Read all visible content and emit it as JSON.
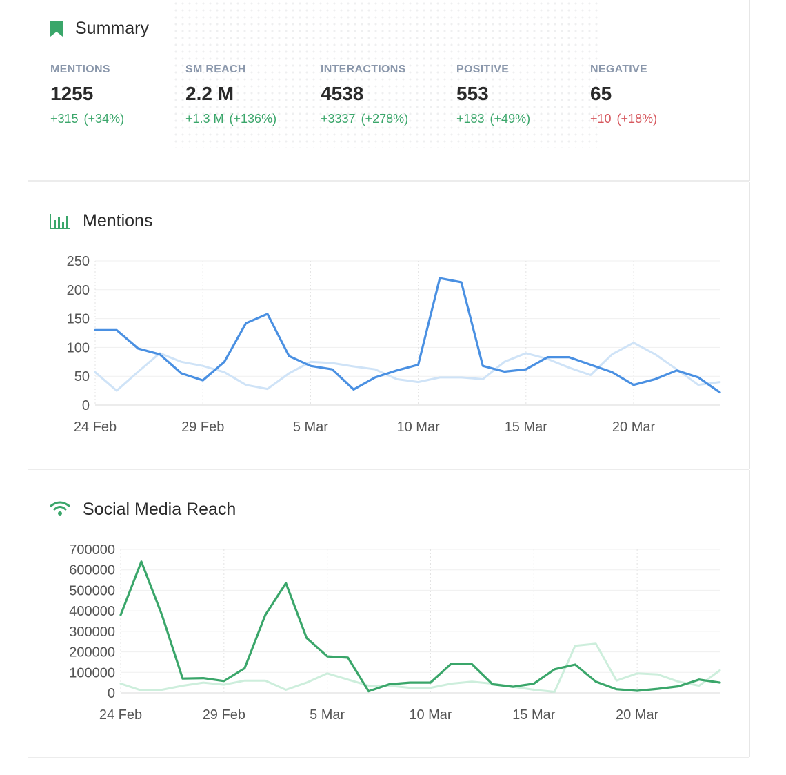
{
  "summary": {
    "title": "Summary",
    "metrics": [
      {
        "label": "MENTIONS",
        "value": "1255",
        "delta": "+315",
        "pct": "(+34%)",
        "trend": "pos"
      },
      {
        "label": "SM REACH",
        "value": "2.2 M",
        "delta": "+1.3 M",
        "pct": "(+136%)",
        "trend": "pos"
      },
      {
        "label": "INTERACTIONS",
        "value": "4538",
        "delta": "+3337",
        "pct": "(+278%)",
        "trend": "pos"
      },
      {
        "label": "POSITIVE",
        "value": "553",
        "delta": "+183",
        "pct": "(+49%)",
        "trend": "pos"
      },
      {
        "label": "NEGATIVE",
        "value": "65",
        "delta": "+10",
        "pct": "(+18%)",
        "trend": "neg"
      }
    ]
  },
  "colors": {
    "mentions_current": "#4a90e2",
    "mentions_previous": "#cfe3f7",
    "reach_current": "#3aa66a",
    "reach_previous": "#cdeedc",
    "icon_green": "#3aa66a"
  },
  "icons": {
    "summary": "bookmark-icon",
    "mentions": "bar-chart-icon",
    "reach": "wifi-icon"
  },
  "chart_data": [
    {
      "type": "line",
      "title": "Mentions",
      "x_labels": [
        "24 Feb",
        "29 Feb",
        "5 Mar",
        "10 Mar",
        "15 Mar",
        "20 Mar"
      ],
      "x_label_indices": [
        0,
        5,
        10,
        15,
        20,
        25
      ],
      "y_ticks": [
        0,
        50,
        100,
        150,
        200,
        250
      ],
      "ylim": [
        0,
        250
      ],
      "points": 30,
      "grid": true,
      "series": [
        {
          "values": [
            57,
            25,
            58,
            90,
            75,
            68,
            57,
            35,
            28,
            55,
            75,
            73,
            67,
            62,
            45,
            40,
            48,
            48,
            45,
            75,
            90,
            80,
            65,
            52,
            88,
            108,
            88,
            62,
            35,
            40
          ]
        },
        {
          "values": [
            130,
            130,
            98,
            88,
            55,
            43,
            75,
            142,
            158,
            85,
            68,
            62,
            27,
            48,
            60,
            70,
            220,
            213,
            68,
            58,
            62,
            83,
            83,
            70,
            57,
            35,
            45,
            60,
            48,
            22
          ]
        }
      ]
    },
    {
      "type": "line",
      "title": "Social Media Reach",
      "x_labels": [
        "24 Feb",
        "29 Feb",
        "5 Mar",
        "10 Mar",
        "15 Mar",
        "20 Mar"
      ],
      "x_label_indices": [
        0,
        5,
        10,
        15,
        20,
        25
      ],
      "y_ticks": [
        0,
        100000,
        200000,
        300000,
        400000,
        500000,
        600000,
        700000
      ],
      "ylim": [
        0,
        700000
      ],
      "points": 30,
      "grid": true,
      "series": [
        {
          "values": [
            45000,
            12000,
            15000,
            35000,
            50000,
            40000,
            60000,
            60000,
            15000,
            50000,
            95000,
            65000,
            35000,
            35000,
            25000,
            25000,
            45000,
            55000,
            45000,
            30000,
            15000,
            5000,
            230000,
            240000,
            60000,
            95000,
            90000,
            55000,
            35000,
            110000
          ]
        },
        {
          "values": [
            380000,
            640000,
            380000,
            70000,
            72000,
            58000,
            120000,
            380000,
            535000,
            268000,
            178000,
            172000,
            8000,
            42000,
            50000,
            50000,
            142000,
            140000,
            42000,
            30000,
            45000,
            115000,
            138000,
            55000,
            18000,
            10000,
            20000,
            32000,
            65000,
            50000
          ]
        }
      ]
    }
  ]
}
